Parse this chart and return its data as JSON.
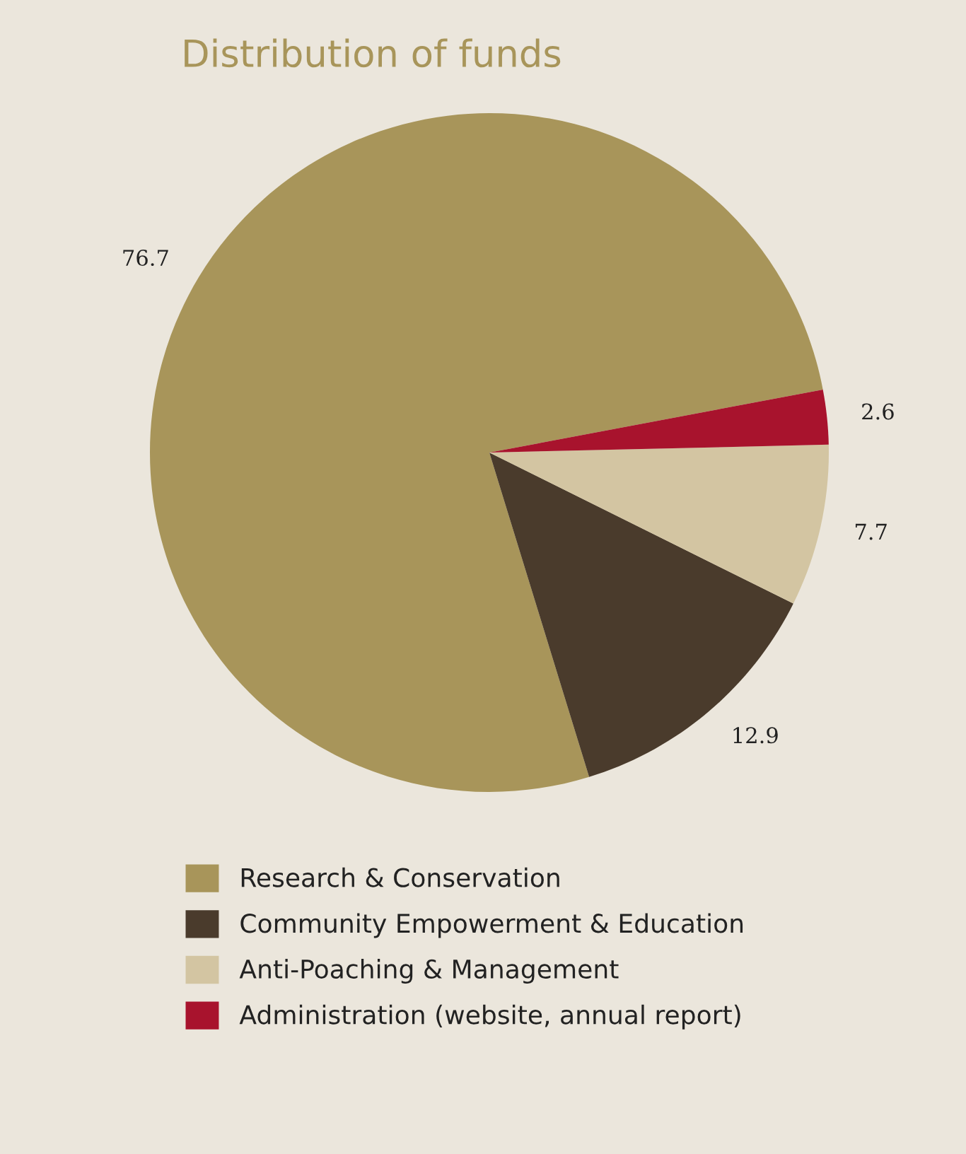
{
  "chart_data": {
    "type": "pie",
    "title": "Distribution of funds",
    "categories": [
      "Research & Conservation",
      "Community Empowerment & Education",
      "Anti-Poaching & Management",
      "Administration (website, annual report)"
    ],
    "values": [
      76.7,
      12.9,
      7.7,
      2.6
    ],
    "colors": [
      "#a8955a",
      "#4a3b2c",
      "#d3c5a2",
      "#a8132d"
    ],
    "data_labels": true,
    "legend": "bottom"
  }
}
